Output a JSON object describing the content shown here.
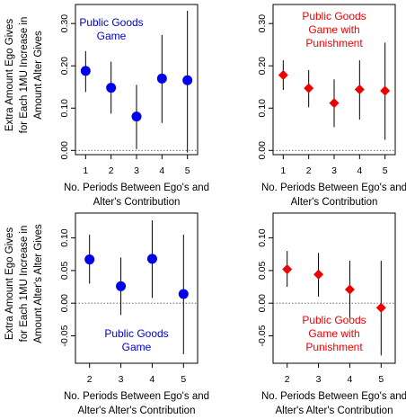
{
  "chart_data": [
    {
      "type": "scatter",
      "annotation": [
        "Public Goods",
        "Game"
      ],
      "annotation_color": "#0000cc",
      "marker": "circle",
      "color": "#0000ee",
      "xlabel": [
        "No. Periods Between Ego's and",
        "Alter's Contribution"
      ],
      "ylabel": [
        "Extra Amount Ego Gives",
        "for Each 1MU Increase in",
        "Amount Alter Gives"
      ],
      "xlim": [
        0.6,
        5.4
      ],
      "ylim": [
        -0.01,
        0.345
      ],
      "x_ticks": [
        1,
        2,
        3,
        4,
        5
      ],
      "y_ticks": [
        0.0,
        0.1,
        0.2,
        0.3
      ],
      "y_tick_labels": [
        "0.00",
        "0.10",
        "0.20",
        "0.30"
      ],
      "annotation_pos": "top-left",
      "points": [
        {
          "x": 1,
          "y": 0.188,
          "lo": 0.138,
          "hi": 0.235
        },
        {
          "x": 2,
          "y": 0.148,
          "lo": 0.087,
          "hi": 0.21
        },
        {
          "x": 3,
          "y": 0.08,
          "lo": 0.003,
          "hi": 0.155
        },
        {
          "x": 4,
          "y": 0.17,
          "lo": 0.065,
          "hi": 0.273
        },
        {
          "x": 5,
          "y": 0.166,
          "lo": -0.005,
          "hi": 0.33
        }
      ]
    },
    {
      "type": "scatter",
      "annotation": [
        "Public Goods",
        "Game with",
        "Punishment"
      ],
      "annotation_color": "#ee0000",
      "marker": "diamond",
      "color": "#ee0000",
      "xlabel": [
        "No. Periods Between Ego's and",
        "Alter's Contribution"
      ],
      "ylabel": [],
      "xlim": [
        0.6,
        5.4
      ],
      "ylim": [
        -0.01,
        0.345
      ],
      "x_ticks": [
        1,
        2,
        3,
        4,
        5
      ],
      "y_ticks": [
        0.0,
        0.1,
        0.2,
        0.3
      ],
      "y_tick_labels": [
        "0.00",
        "0.10",
        "0.20",
        "0.30"
      ],
      "annotation_pos": "top-center",
      "points": [
        {
          "x": 1,
          "y": 0.178,
          "lo": 0.143,
          "hi": 0.213
        },
        {
          "x": 2,
          "y": 0.147,
          "lo": 0.102,
          "hi": 0.19
        },
        {
          "x": 3,
          "y": 0.112,
          "lo": 0.055,
          "hi": 0.168
        },
        {
          "x": 4,
          "y": 0.144,
          "lo": 0.073,
          "hi": 0.213
        },
        {
          "x": 5,
          "y": 0.141,
          "lo": 0.025,
          "hi": 0.255
        }
      ]
    },
    {
      "type": "scatter",
      "annotation": [
        "Public Goods",
        "Game"
      ],
      "annotation_color": "#0000cc",
      "marker": "circle",
      "color": "#0000ee",
      "xlabel": [
        "No. Periods Between Ego's and",
        "Alter's Alter's Contribution"
      ],
      "ylabel": [
        "Extra Amount Ego Gives",
        "for Each 1MU Increase in",
        "Amount Alter's Alter Gives"
      ],
      "xlim": [
        1.55,
        5.45
      ],
      "ylim": [
        -0.092,
        0.138
      ],
      "x_ticks": [
        2,
        3,
        4,
        5
      ],
      "y_ticks": [
        -0.05,
        0.0,
        0.05,
        0.1
      ],
      "y_tick_labels": [
        "-0.05",
        "0.00",
        "0.05",
        "0.10"
      ],
      "annotation_pos": "bottom-center",
      "points": [
        {
          "x": 2,
          "y": 0.067,
          "lo": 0.03,
          "hi": 0.105
        },
        {
          "x": 3,
          "y": 0.026,
          "lo": -0.018,
          "hi": 0.07
        },
        {
          "x": 4,
          "y": 0.068,
          "lo": 0.008,
          "hi": 0.127
        },
        {
          "x": 5,
          "y": 0.014,
          "lo": -0.078,
          "hi": 0.105
        }
      ]
    },
    {
      "type": "scatter",
      "annotation": [
        "Public Goods",
        "Game with",
        "Punishment"
      ],
      "annotation_color": "#ee0000",
      "marker": "diamond",
      "color": "#ee0000",
      "xlabel": [
        "No. Periods Between Ego's and",
        "Alter's Alter's Contribution"
      ],
      "ylabel": [],
      "xlim": [
        1.55,
        5.45
      ],
      "ylim": [
        -0.092,
        0.138
      ],
      "x_ticks": [
        2,
        3,
        4,
        5
      ],
      "y_ticks": [
        -0.05,
        0.0,
        0.05,
        0.1
      ],
      "y_tick_labels": [
        "-0.05",
        "0.00",
        "0.05",
        "0.10"
      ],
      "annotation_pos": "bottom-center",
      "points": [
        {
          "x": 2,
          "y": 0.052,
          "lo": 0.025,
          "hi": 0.08
        },
        {
          "x": 3,
          "y": 0.044,
          "lo": 0.01,
          "hi": 0.077
        },
        {
          "x": 4,
          "y": 0.021,
          "lo": -0.023,
          "hi": 0.065
        },
        {
          "x": 5,
          "y": -0.007,
          "lo": -0.08,
          "hi": 0.065
        }
      ]
    }
  ]
}
